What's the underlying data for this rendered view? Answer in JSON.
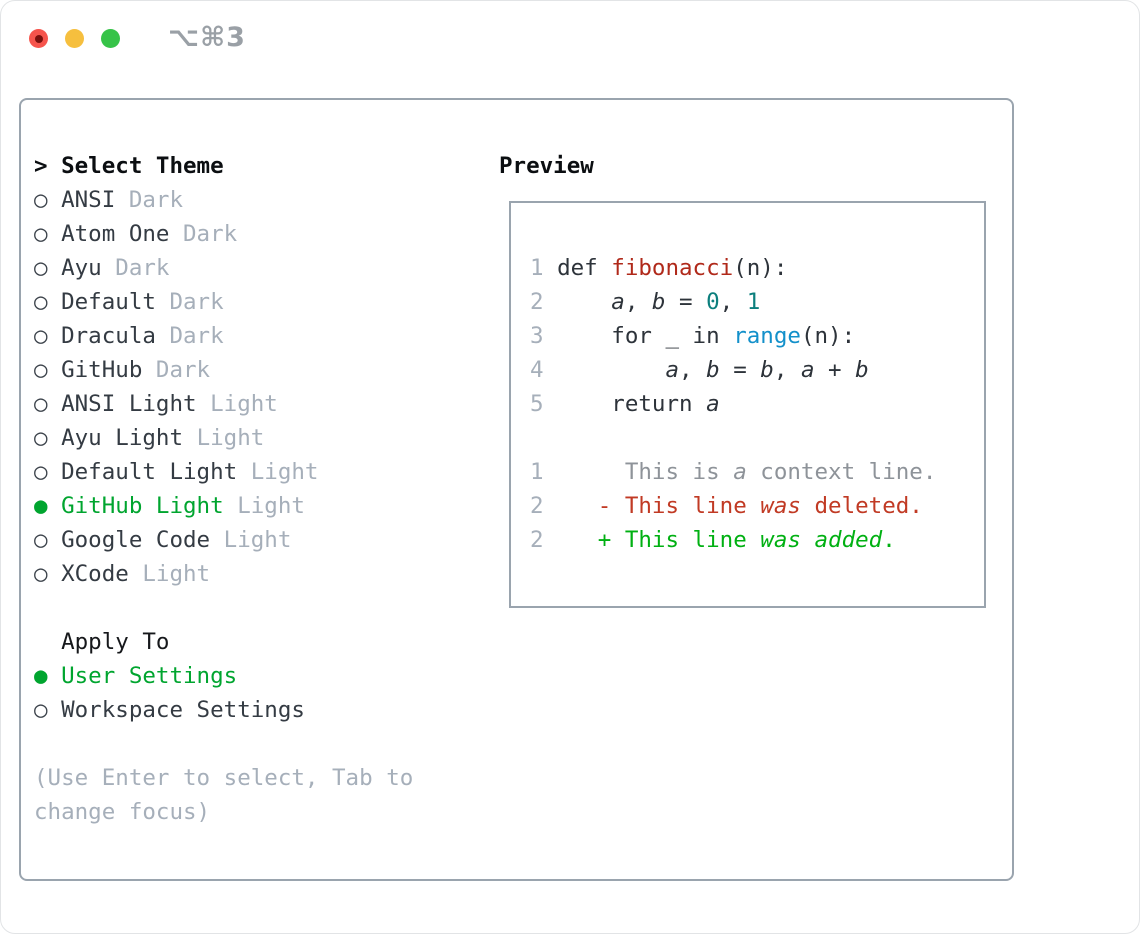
{
  "window": {
    "title": "⌥⌘3",
    "traffic_lights": [
      {
        "name": "close",
        "color": "#f6544c",
        "dot": "#7a100d"
      },
      {
        "name": "minimize",
        "color": "#f6bf3e"
      },
      {
        "name": "zoom",
        "color": "#36c348"
      }
    ]
  },
  "theme_panel": {
    "header": {
      "prompt": ">",
      "label": "Select Theme"
    },
    "markers": {
      "selected": "●",
      "unselected": "○"
    },
    "themes": [
      {
        "name": "ANSI",
        "variant": "Dark",
        "selected": false
      },
      {
        "name": "Atom One",
        "variant": "Dark",
        "selected": false
      },
      {
        "name": "Ayu",
        "variant": "Dark",
        "selected": false
      },
      {
        "name": "Default",
        "variant": "Dark",
        "selected": false
      },
      {
        "name": "Dracula",
        "variant": "Dark",
        "selected": false
      },
      {
        "name": "GitHub",
        "variant": "Dark",
        "selected": false
      },
      {
        "name": "ANSI Light",
        "variant": "Light",
        "selected": false
      },
      {
        "name": "Ayu Light",
        "variant": "Light",
        "selected": false
      },
      {
        "name": "Default Light",
        "variant": "Light",
        "selected": false
      },
      {
        "name": "GitHub Light",
        "variant": "Light",
        "selected": true
      },
      {
        "name": "Google Code",
        "variant": "Light",
        "selected": false
      },
      {
        "name": "XCode",
        "variant": "Light",
        "selected": false
      }
    ],
    "apply_to": {
      "label": "Apply To",
      "options": [
        {
          "label": "User Settings",
          "selected": true
        },
        {
          "label": "Workspace Settings",
          "selected": false
        }
      ]
    },
    "help_lines": [
      "(Use Enter to select, Tab to",
      "change focus)"
    ]
  },
  "preview": {
    "label": "Preview",
    "code_lines": [
      {
        "num": "1",
        "tokens": [
          {
            "t": "def ",
            "s": "d"
          },
          {
            "t": "fibonacci",
            "s": "fn"
          },
          {
            "t": "(n):",
            "s": "d"
          }
        ]
      },
      {
        "num": "2",
        "tokens": [
          {
            "t": "    ",
            "s": "d"
          },
          {
            "t": "a",
            "s": "v"
          },
          {
            "t": ", ",
            "s": "d"
          },
          {
            "t": "b",
            "s": "v"
          },
          {
            "t": " = ",
            "s": "d"
          },
          {
            "t": "0",
            "s": "num"
          },
          {
            "t": ", ",
            "s": "d"
          },
          {
            "t": "1",
            "s": "num"
          }
        ]
      },
      {
        "num": "3",
        "tokens": [
          {
            "t": "    for _ in ",
            "s": "d"
          },
          {
            "t": "range",
            "s": "bi"
          },
          {
            "t": "(n):",
            "s": "d"
          }
        ]
      },
      {
        "num": "4",
        "tokens": [
          {
            "t": "        ",
            "s": "d"
          },
          {
            "t": "a",
            "s": "v"
          },
          {
            "t": ", ",
            "s": "d"
          },
          {
            "t": "b",
            "s": "v"
          },
          {
            "t": " = ",
            "s": "d"
          },
          {
            "t": "b",
            "s": "v"
          },
          {
            "t": ", ",
            "s": "d"
          },
          {
            "t": "a",
            "s": "v"
          },
          {
            "t": " + ",
            "s": "d"
          },
          {
            "t": "b",
            "s": "v"
          }
        ]
      },
      {
        "num": "5",
        "tokens": [
          {
            "t": "    return ",
            "s": "d"
          },
          {
            "t": "a",
            "s": "v"
          }
        ]
      },
      {
        "num": "",
        "tokens": []
      },
      {
        "num": "1",
        "tokens": [
          {
            "t": "     This is ",
            "s": "ctx"
          },
          {
            "t": "a",
            "s": "ctx-i"
          },
          {
            "t": " context line.",
            "s": "ctx"
          }
        ]
      },
      {
        "num": "2",
        "tokens": [
          {
            "t": "   - This line ",
            "s": "del"
          },
          {
            "t": "was",
            "s": "del-i"
          },
          {
            "t": " deleted.",
            "s": "del"
          }
        ]
      },
      {
        "num": "2",
        "tokens": [
          {
            "t": "   + This line ",
            "s": "add"
          },
          {
            "t": "was",
            "s": "add-i"
          },
          {
            "t": " ",
            "s": "add"
          },
          {
            "t": "added",
            "s": "add-i"
          },
          {
            "t": ".",
            "s": "add"
          }
        ]
      }
    ]
  },
  "colors": {
    "accent_green": "#00a52f",
    "added_green": "#00b012",
    "deleted_red": "#c13a24",
    "function_red": "#b0291a",
    "number_teal": "#0c7f7d",
    "builtin_blue": "#1390ca",
    "muted_gray": "#a6afba",
    "context_gray": "#8e9399",
    "text_dark": "#2d333a",
    "border_gray": "#9aa4ae"
  }
}
